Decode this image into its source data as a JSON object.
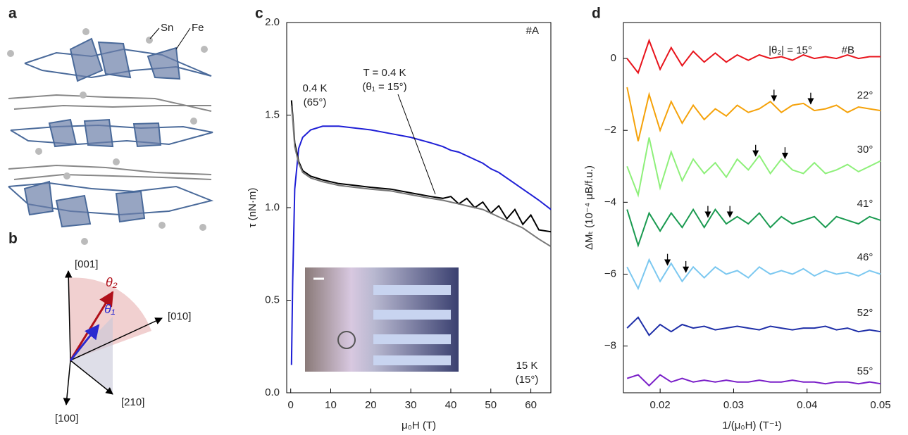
{
  "panels": {
    "a": {
      "label": "a",
      "atoms": [
        "Sn",
        "Fe"
      ]
    },
    "b": {
      "label": "b",
      "directions": [
        "[001]",
        "[010]",
        "[210]",
        "[100]"
      ],
      "angles": [
        "θ₂",
        "θ₁"
      ]
    }
  },
  "chart_data": [
    {
      "type": "line",
      "panel_label": "c",
      "annotation": "#A",
      "xlabel": "μ₀H (T)",
      "ylabel": "τ (nN·m)",
      "xlim": [
        -1,
        65
      ],
      "xticks": [
        0,
        10,
        20,
        30,
        40,
        50,
        60
      ],
      "ylim": [
        0,
        2
      ],
      "yticks": [
        {
          "value": 0,
          "label": "0.0"
        },
        0.5,
        {
          "value": 1,
          "label": "1.0"
        },
        1.5,
        {
          "value": 2,
          "label": "2.0"
        }
      ],
      "x": [
        0.2,
        0.5,
        1,
        2,
        3,
        5,
        8,
        12,
        16,
        20,
        25,
        30,
        35,
        38,
        40,
        42,
        44,
        46,
        48,
        50,
        52,
        54,
        56,
        58,
        60,
        62,
        65
      ],
      "series": [
        {
          "label": [
            "0.4 K",
            "(65°)"
          ],
          "color": "#1f1fd6",
          "values": [
            0.15,
            0.6,
            1.1,
            1.32,
            1.38,
            1.42,
            1.44,
            1.44,
            1.43,
            1.42,
            1.4,
            1.38,
            1.35,
            1.33,
            1.31,
            1.3,
            1.28,
            1.26,
            1.24,
            1.21,
            1.19,
            1.16,
            1.13,
            1.1,
            1.07,
            1.04,
            0.99
          ]
        },
        {
          "label": [
            "T = 0.4 K",
            "(θ₁ = 15°)"
          ],
          "color": "#000000",
          "values": [
            1.58,
            1.5,
            1.35,
            1.25,
            1.2,
            1.17,
            1.15,
            1.13,
            1.12,
            1.11,
            1.1,
            1.08,
            1.06,
            1.05,
            1.06,
            1.02,
            1.05,
            1.0,
            1.03,
            0.97,
            1.01,
            0.94,
            0.99,
            0.91,
            0.96,
            0.88,
            0.87
          ]
        },
        {
          "label": [
            "15 K",
            "(15°)"
          ],
          "color": "#777777",
          "values": [
            1.55,
            1.48,
            1.33,
            1.24,
            1.19,
            1.16,
            1.14,
            1.12,
            1.11,
            1.1,
            1.09,
            1.07,
            1.05,
            1.04,
            1.03,
            1.02,
            1.01,
            1.0,
            0.99,
            0.97,
            0.95,
            0.93,
            0.91,
            0.89,
            0.86,
            0.83,
            0.79
          ]
        }
      ]
    },
    {
      "type": "line",
      "panel_label": "d",
      "annotation": "#B",
      "xlabel": "1/(μ₀H) (T⁻¹)",
      "ylabel": "ΔMₜ (10⁻⁴ μB/f.u.)",
      "xlim": [
        0.015,
        0.05
      ],
      "xticks": [
        0.02,
        0.03,
        0.04,
        0.05
      ],
      "ylim": [
        -9.3,
        1.0
      ],
      "yticks": [
        0,
        {
          "value": -2,
          "label": "−2"
        },
        {
          "value": -4,
          "label": "−4"
        },
        {
          "value": -6,
          "label": "−6"
        },
        {
          "value": -8,
          "label": "−8"
        }
      ],
      "x": [
        0.0155,
        0.017,
        0.0185,
        0.02,
        0.0215,
        0.023,
        0.0245,
        0.026,
        0.0275,
        0.029,
        0.0305,
        0.032,
        0.0335,
        0.035,
        0.0365,
        0.038,
        0.0395,
        0.041,
        0.0425,
        0.044,
        0.0455,
        0.047,
        0.0485,
        0.05
      ],
      "series": [
        {
          "label": [
            "|θ₂| = 15°"
          ],
          "color": "#e8141c",
          "values": [
            0,
            -0.4,
            0.5,
            -0.3,
            0.3,
            -0.2,
            0.2,
            -0.1,
            0.15,
            -0.1,
            0.1,
            -0.05,
            0.1,
            0,
            0.05,
            -0.05,
            0.1,
            0,
            0.05,
            0,
            0.1,
            0,
            0.05,
            0.05
          ]
        },
        {
          "label": [
            "22°"
          ],
          "color": "#f5a20a",
          "arrows": [
            0.0355,
            0.0405
          ],
          "values": [
            -0.8,
            -2.3,
            -1.0,
            -2.0,
            -1.2,
            -1.8,
            -1.3,
            -1.7,
            -1.4,
            -1.6,
            -1.3,
            -1.5,
            -1.4,
            -1.2,
            -1.5,
            -1.3,
            -1.25,
            -1.45,
            -1.4,
            -1.3,
            -1.5,
            -1.35,
            -1.4,
            -1.45
          ]
        },
        {
          "label": [
            "30°"
          ],
          "color": "#8ef07a",
          "arrows": [
            0.033,
            0.037
          ],
          "values": [
            -3.0,
            -3.8,
            -2.2,
            -3.6,
            -2.6,
            -3.4,
            -2.8,
            -3.2,
            -2.9,
            -3.3,
            -2.8,
            -3.1,
            -2.7,
            -3.2,
            -2.8,
            -3.1,
            -3.2,
            -2.9,
            -3.2,
            -3.1,
            -2.95,
            -3.15,
            -3.0,
            -2.85
          ]
        },
        {
          "label": [
            "41°"
          ],
          "color": "#1a9a50",
          "arrows": [
            0.0265,
            0.0295
          ],
          "values": [
            -4.2,
            -5.2,
            -4.3,
            -4.8,
            -4.3,
            -4.7,
            -4.2,
            -4.7,
            -4.2,
            -4.6,
            -4.4,
            -4.6,
            -4.3,
            -4.7,
            -4.4,
            -4.6,
            -4.5,
            -4.4,
            -4.7,
            -4.4,
            -4.5,
            -4.6,
            -4.4,
            -4.5
          ]
        },
        {
          "label": [
            "46°"
          ],
          "color": "#7cc8f0",
          "arrows": [
            0.021,
            0.0235
          ],
          "values": [
            -5.8,
            -6.4,
            -5.6,
            -6.2,
            -5.7,
            -6.2,
            -5.8,
            -6.1,
            -5.8,
            -6.0,
            -5.9,
            -6.1,
            -5.8,
            -6.0,
            -5.9,
            -6.0,
            -5.85,
            -6.05,
            -5.9,
            -6.0,
            -5.95,
            -6.05,
            -5.9,
            -6.0
          ]
        },
        {
          "label": [
            "52°"
          ],
          "color": "#1f2fa8",
          "values": [
            -7.5,
            -7.2,
            -7.7,
            -7.4,
            -7.6,
            -7.4,
            -7.5,
            -7.45,
            -7.55,
            -7.5,
            -7.45,
            -7.5,
            -7.55,
            -7.45,
            -7.5,
            -7.55,
            -7.5,
            -7.5,
            -7.45,
            -7.55,
            -7.5,
            -7.6,
            -7.55,
            -7.6
          ]
        },
        {
          "label": [
            "55°"
          ],
          "color": "#7a1fc8",
          "values": [
            -8.9,
            -8.8,
            -9.1,
            -8.8,
            -9.0,
            -8.9,
            -9.0,
            -8.95,
            -9.0,
            -8.95,
            -9.0,
            -9.0,
            -8.95,
            -9.0,
            -9.0,
            -8.95,
            -9.0,
            -9.0,
            -9.05,
            -9.0,
            -9.0,
            -9.05,
            -9.0,
            -9.05
          ]
        }
      ]
    }
  ]
}
